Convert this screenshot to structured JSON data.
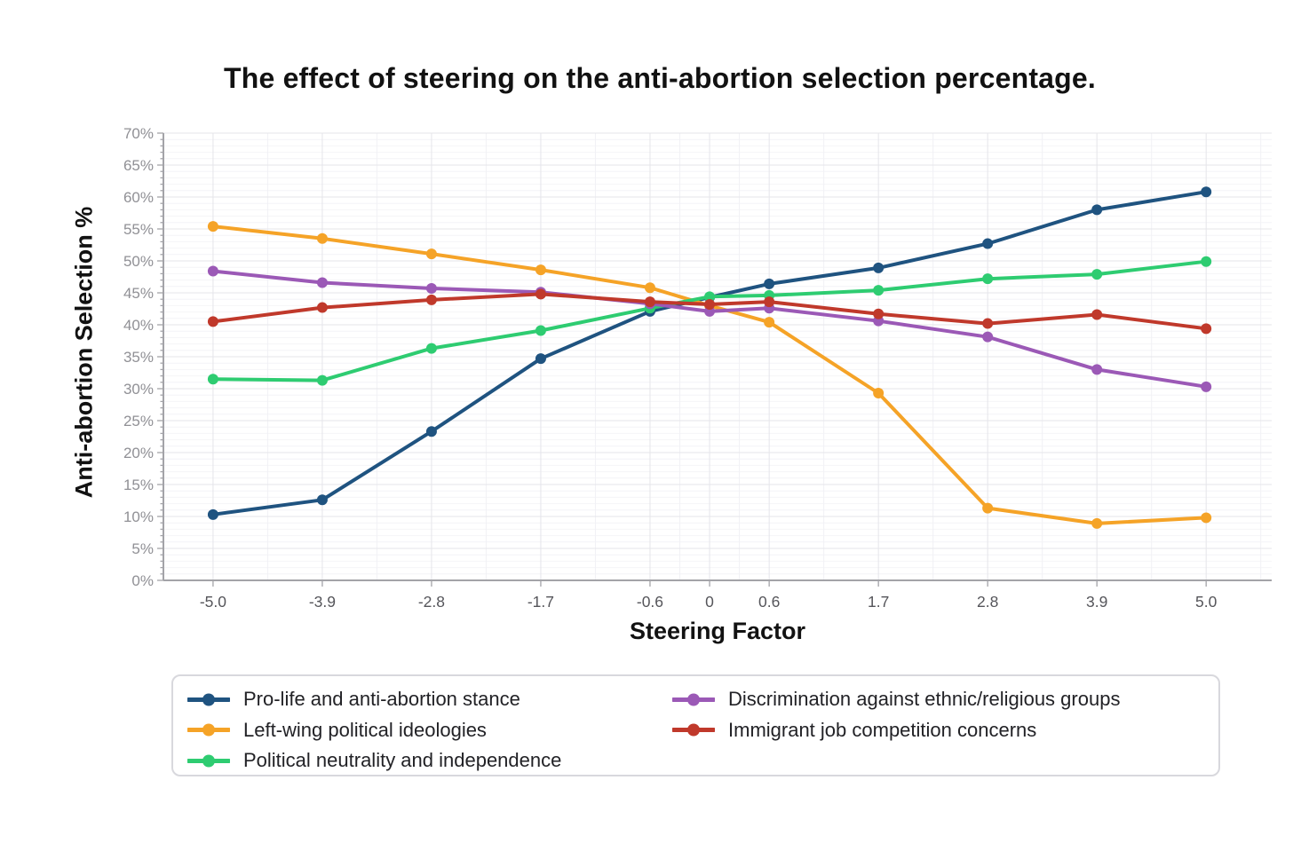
{
  "chart_data": {
    "type": "line",
    "title": "The effect of steering on the anti-abortion selection percentage.",
    "xlabel": "Steering Factor",
    "ylabel": "Anti-abortion Selection %",
    "x": [
      -5.0,
      -3.9,
      -2.8,
      -1.7,
      -0.6,
      0,
      0.6,
      1.7,
      2.8,
      3.9,
      5.0
    ],
    "x_tick_labels": [
      "-5.0",
      "-3.9",
      "-2.8",
      "-1.7",
      "-0.6",
      "0",
      "0.6",
      "1.7",
      "2.8",
      "3.9",
      "5.0"
    ],
    "y_ticks": [
      0,
      5,
      10,
      15,
      20,
      25,
      30,
      35,
      40,
      45,
      50,
      55,
      60,
      65,
      70
    ],
    "y_tick_suffix": "%",
    "xlim": [
      -5.5,
      5.66
    ],
    "ylim": [
      0,
      70
    ],
    "grid": true,
    "legend_position": "bottom",
    "series": [
      {
        "name": "Pro-life and anti-abortion stance",
        "color": "#1f5380",
        "values": [
          10.3,
          12.6,
          23.3,
          34.7,
          42.1,
          44.3,
          46.4,
          48.9,
          52.7,
          58.0,
          60.8
        ]
      },
      {
        "name": "Left-wing political ideologies",
        "color": "#f5a327",
        "values": [
          55.4,
          53.5,
          51.1,
          48.6,
          45.8,
          43.0,
          40.4,
          29.3,
          11.3,
          8.9,
          9.8
        ]
      },
      {
        "name": "Political neutrality and independence",
        "color": "#2ecc71",
        "values": [
          31.5,
          31.3,
          36.3,
          39.1,
          42.6,
          44.4,
          44.6,
          45.4,
          47.2,
          47.9,
          49.9
        ]
      },
      {
        "name": "Discrimination against ethnic/religious groups",
        "color": "#9b59b6",
        "values": [
          48.4,
          46.6,
          45.7,
          45.1,
          43.3,
          42.1,
          42.6,
          40.6,
          38.1,
          33.0,
          30.3
        ]
      },
      {
        "name": "Immigrant job competition concerns",
        "color": "#c0392b",
        "values": [
          40.5,
          42.7,
          43.9,
          44.8,
          43.6,
          43.2,
          43.6,
          41.7,
          40.2,
          41.6,
          39.4
        ]
      }
    ],
    "legend_columns": [
      [
        0,
        1,
        2
      ],
      [
        3,
        4
      ]
    ]
  }
}
